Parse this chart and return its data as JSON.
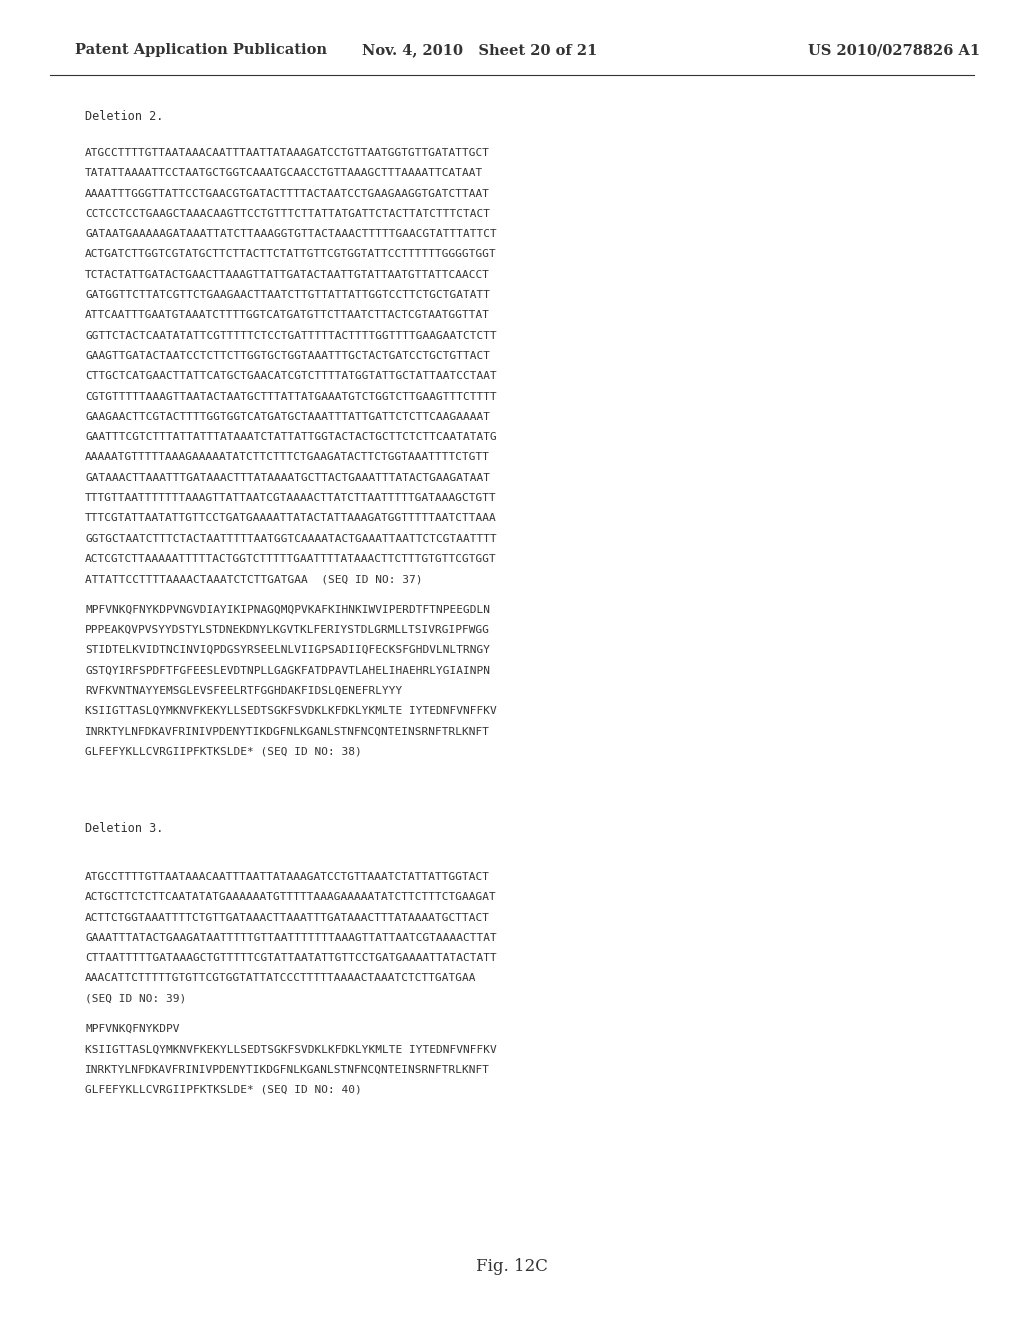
{
  "background_color": "#ffffff",
  "text_color": "#333333",
  "header_left": "Patent Application Publication",
  "header_center": "Nov. 4, 2010   Sheet 20 of 21",
  "header_right": "US 2010/0278826 A1",
  "header_fontsize": 10.5,
  "section1_label": "Deletion 2.",
  "section1_dna": [
    "ATGCCTTTTGTTAATAAACAATTTAATTATAAAGATCCTGTTAATGGTGTTGATATTGCT",
    "TATATTAAAATTCCTAATGCTGGTCAAATGCAACCTGTTAAAGCTTTAAAATTCATAAT",
    "AAAATTTGGGTTATTCCTGAACGTGATACTTTTACTAATCCTGAAGAAGGTGATCTTAAT",
    "CCTCCTCCTGAAGCTAAACAAGTTCCTGTTTCTTATTATGATTCTACTTATCTTTCTACT",
    "GATAATGAAAAAGATAAATTATCTTAAAGGTGTTACTAAACTTTTTGAACGTATTTATTCT",
    "ACTGATCTTGGTCGTATGCTTCTTACTTCTATTGTTCGTGGTATTCCTTTTTTGGGGTGGT",
    "TCTACTATTGATACTGAACTTAAAGTTATTGATACTAATTGTATTAATGTTATTCAACCT",
    "GATGGTTCTTATCGTTCTGAAGAACTTAATCTTGTTATTATTGGTCCTTCTGCTGATATT",
    "ATTCAATTTGAATGTAAATCTTTTGGTCATGATGTTCTTAATCTTACTCGTAATGGTTAT",
    "GGTTCTACTCAATATATTCGTTTTTCTCCTGATTTTTACTTTTGGTTTTGAAGAATCTCTT",
    "GAAGTTGATACTAATCCTCTTCTTGGTGCTGGTAAATTTGCTACTGATCCTGCTGTTACT",
    "CTTGCTCATGAACTTATTCATGCTGAACATCGTCTTTTATGGTATTGCTATTAATCCTAAT",
    "CGTGTTTTTAAAGTTAATACTAATGCTTTATTATGAAATGTCTGGTCTTGAAGTTTCTTTT",
    "GAAGAACTTCGTACTTTTGGTGGTCATGATGCTAAATTTATTGATTCTCTTCAAGAAAAT",
    "GAATTTCGTCTTTATTATTTATAAATCTATTATTGGTACTACTGCTTCTCTTCAATATATG",
    "AAAAATGTTTTTAAAGAAAAATATCTTCTTTCTGAAGATACTTCTGGTAAATTTTCTGTT",
    "GATAAACTTAAATTTGATAAACTTTATAAAATGCTTACTGAAATTTATACTGAAGATAAT",
    "TTTGTTAATTTTTTTAAAGTTATTAATCGTAAAACTTATCTTAATTTTTGATAAAGCTGTT",
    "TTTCGTATTAATATTGTTCCTGATGAAAATTATACTATTAAAGATGGTTTTTAATCTTAAA",
    "GGTGCTAATCTTTCTACTAATTTTTAATGGTCAAAATACTGAAATTAATTCTCGTAATTTT",
    "ACTCGTCTTAAAAATTTTTACTGGTCTTTTTGAATTTTATAAACTTCTTTGTGTTCGTGGT",
    "ATTATTCCTTTTAAAACTAAATCTCTTGATGAA  (SEQ ID NO: 37)"
  ],
  "section1_protein": [
    "MPFVNKQFNYKDPVNGVDIAYIKIPNAGQMQPVKAFKIHNKIWVIPERDTFTNPEEGDLN",
    "PPPEAKQVPVSYYDSTYLSTDNEKDNYLKGVTKLFERIYSTDLGRMLLTSIVRGIPFWGG",
    "STIDTELKVIDTNCINVIQPDGSYRSEELNLVIIGPSADIIQFECKSFGHDVLNLTRNGY",
    "GSTQYIRFSPDFTFGFEESLEVDTNPLLGAGKFATDPAVTLAHELIHAEHRLYGIAINPN",
    "RVFKVNTNAYYEMSGLEVSFEELRTFGGHDAKFIDSLQENEFRLYYY",
    "KSIIGTTASLQYMKNVFKEKYLLSEDTSGKFSVDKLKFDKLYKMLTE IYTEDNFVNFFKV",
    "INRKTYLNFDKAVFRINIVPDENYTIKDGFNLKGANLSTNFNCQNTEINSRNFTRLKNFT",
    "GLFEFYKLLCVRGIIPFKTKSLDE* (SEQ ID NO: 38)"
  ],
  "section2_label": "Deletion 3.",
  "section2_dna": [
    "ATGCCTTTTGTTAATAAACAATTTAATTATAAAGATCCTGTTAAATCTATTATTGGTACT",
    "ACTGCTTCTCTTCAATATATGAAAAAATGTTTTTAAAGAAAAATATCTTCTTTCTGAAGAT",
    "ACTTCTGGTAAATTTTCTGTTGATAAACTTAAATTTGATAAACTTTATAAAATGCTTACT",
    "GAAATTTATACTGAAGATAATTTTTGTTAATTTTTTTAAAGTTATTAATCGTAAAACTTAT",
    "CTTAATTTTTGATAAAGCTGTTTTTCGTATTAATATTGTTCCTGATGAAAATTATACTATT",
    "AAACATTCTTTTTGTGTTCGTGGTATTATCCCTTTTTAAAACTAAATCTCTTGATGAA",
    "(SEQ ID NO: 39)"
  ],
  "section2_protein": [
    "MPFVNKQFNYKDPV",
    "KSIIGTTASLQYMKNVFKEKYLLSEDTSGKFSVDKLKFDKLYKMLTE IYTEDNFVNFFKV",
    "INRKTYLNFDKAVFRINIVPDENYTIKDGFNLKGANLSTNFNCQNTEINSRNFTRLKNFT",
    "GLFEFYKLLCVRGIIPFKTKSLDE* (SEQ ID NO: 40)"
  ],
  "fig_label": "Fig. 12C",
  "mono_fontsize": 8.0,
  "label_fontsize": 8.5,
  "fig_fontsize": 12
}
